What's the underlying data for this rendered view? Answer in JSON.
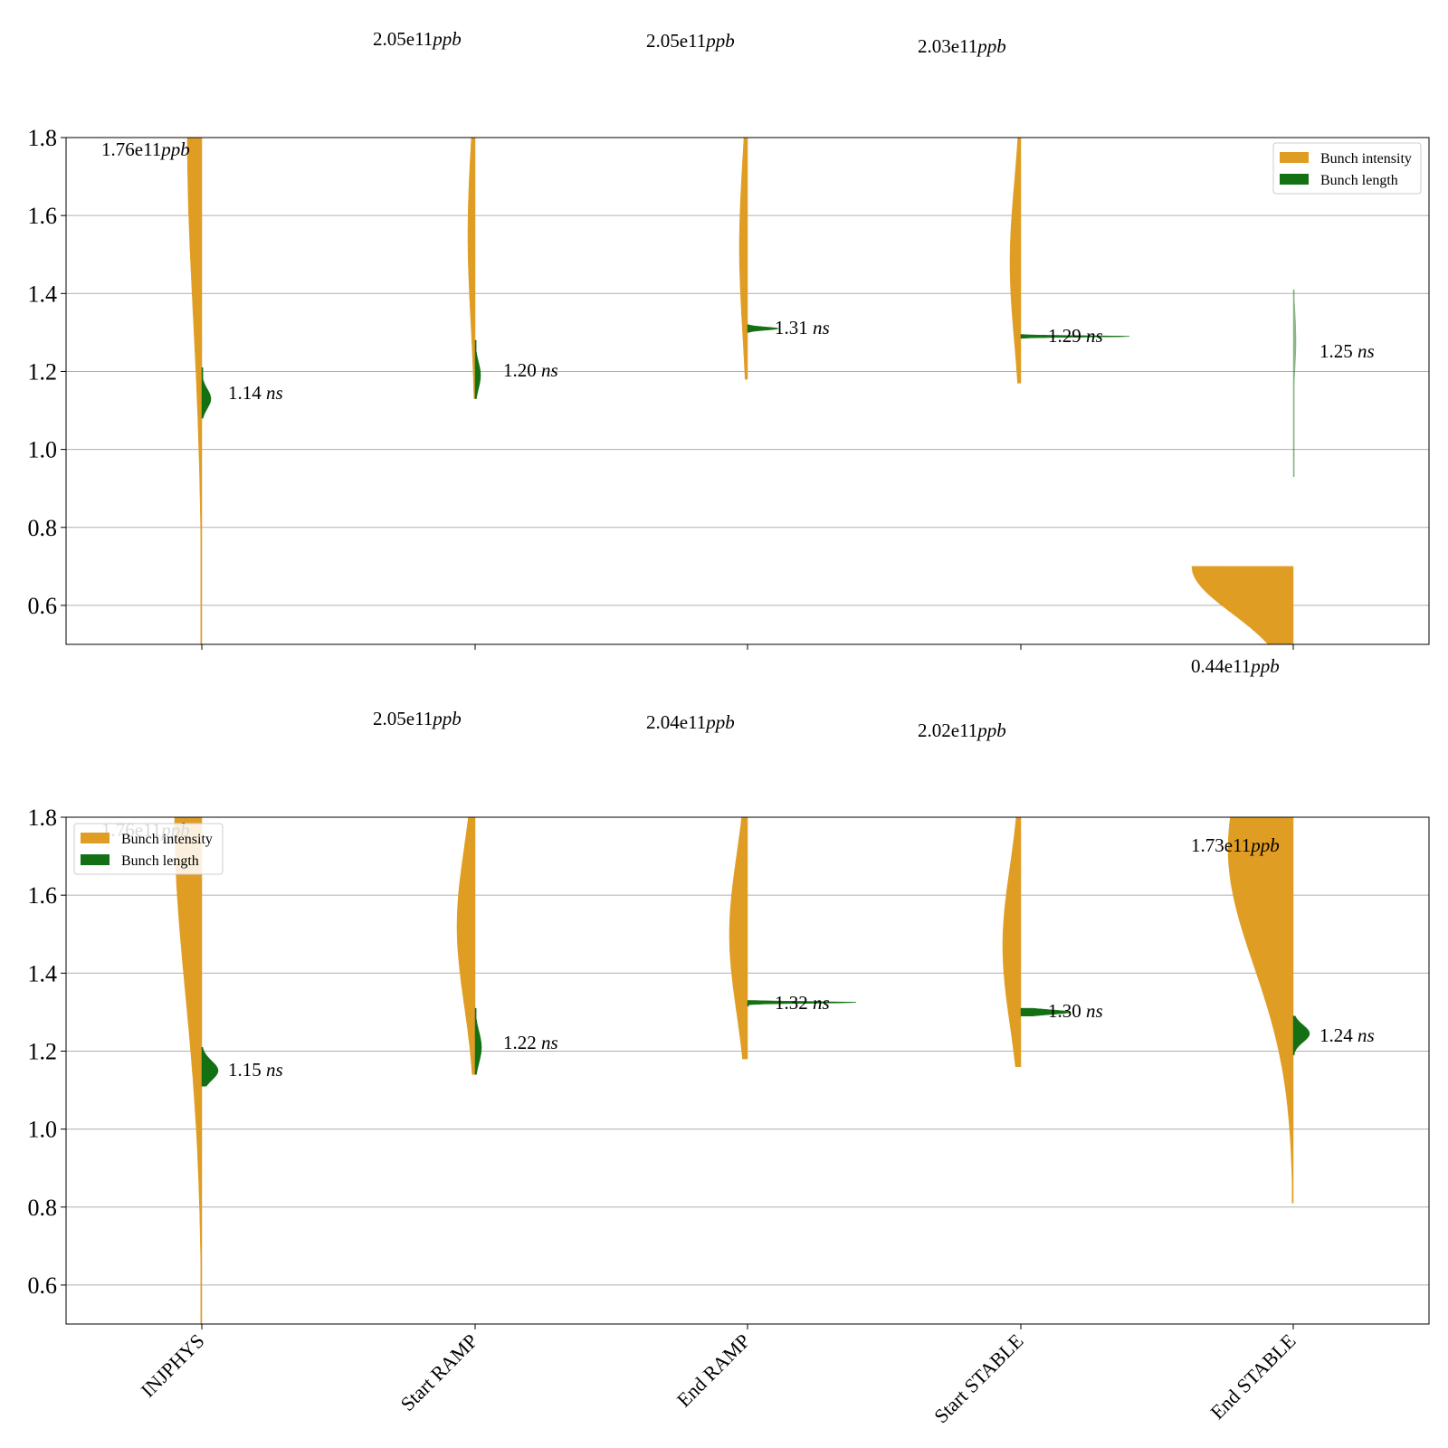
{
  "chart_data": [
    {
      "type": "violin",
      "ylim": [
        0.5,
        1.8
      ],
      "yticks": [
        "0.6",
        "0.8",
        "1.0",
        "1.2",
        "1.4",
        "1.6",
        "1.8"
      ],
      "yticks_values": [
        0.6,
        0.8,
        1.0,
        1.2,
        1.4,
        1.6,
        1.8
      ],
      "categories": [
        "INJPHYS",
        "Start RAMP",
        "End RAMP",
        "Start STABLE",
        "End STABLE"
      ],
      "grid": "y",
      "legend": {
        "position": "top-right",
        "entries": [
          "Bunch intensity",
          "Bunch length"
        ]
      },
      "series": [
        {
          "name": "Bunch intensity",
          "color": "#e09d24",
          "side": "left",
          "means_e11_ppb": [
            1.76,
            2.05,
            2.05,
            2.03,
            0.44
          ],
          "labels": [
            "1.76e11",
            "2.05e11",
            "2.05e11",
            "2.03e11",
            "0.44e11"
          ],
          "unit": "ppb",
          "ranges": [
            [
              0.5,
              1.8
            ],
            [
              1.13,
              1.8
            ],
            [
              1.18,
              1.8
            ],
            [
              1.17,
              1.8
            ],
            [
              0.5,
              0.7
            ]
          ]
        },
        {
          "name": "Bunch length",
          "color": "#137013",
          "side": "right",
          "means_ns": [
            1.14,
            1.2,
            1.31,
            1.29,
            1.25
          ],
          "labels": [
            "1.14",
            "1.20",
            "1.31",
            "1.29",
            "1.25"
          ],
          "unit": "ns",
          "ranges": [
            [
              1.08,
              1.21
            ],
            [
              1.13,
              1.28
            ],
            [
              1.3,
              1.32
            ],
            [
              1.285,
              1.295
            ],
            [
              0.93,
              1.41
            ]
          ]
        }
      ]
    },
    {
      "type": "violin",
      "ylim": [
        0.5,
        1.8
      ],
      "yticks": [
        "0.6",
        "0.8",
        "1.0",
        "1.2",
        "1.4",
        "1.6",
        "1.8"
      ],
      "yticks_values": [
        0.6,
        0.8,
        1.0,
        1.2,
        1.4,
        1.6,
        1.8
      ],
      "categories": [
        "INJPHYS",
        "Start RAMP",
        "End RAMP",
        "Start STABLE",
        "End STABLE"
      ],
      "grid": "y",
      "legend": {
        "position": "top-left",
        "entries": [
          "Bunch intensity",
          "Bunch length"
        ]
      },
      "series": [
        {
          "name": "Bunch intensity",
          "color": "#e09d24",
          "side": "left",
          "means_e11_ppb": [
            1.76,
            2.05,
            2.04,
            2.02,
            1.73
          ],
          "labels": [
            "1.76e11",
            "2.05e11",
            "2.04e11",
            "2.02e11",
            "1.73e11"
          ],
          "unit": "ppb",
          "ranges": [
            [
              0.5,
              1.8
            ],
            [
              1.14,
              1.8
            ],
            [
              1.18,
              1.8
            ],
            [
              1.16,
              1.8
            ],
            [
              0.81,
              1.8
            ]
          ]
        },
        {
          "name": "Bunch length",
          "color": "#137013",
          "side": "right",
          "means_ns": [
            1.15,
            1.22,
            1.32,
            1.3,
            1.24
          ],
          "labels": [
            "1.15",
            "1.22",
            "1.32",
            "1.30",
            "1.24"
          ],
          "unit": "ns",
          "ranges": [
            [
              1.11,
              1.21
            ],
            [
              1.14,
              1.31
            ],
            [
              1.315,
              1.33
            ],
            [
              1.29,
              1.31
            ],
            [
              1.19,
              1.29
            ]
          ]
        }
      ]
    }
  ]
}
